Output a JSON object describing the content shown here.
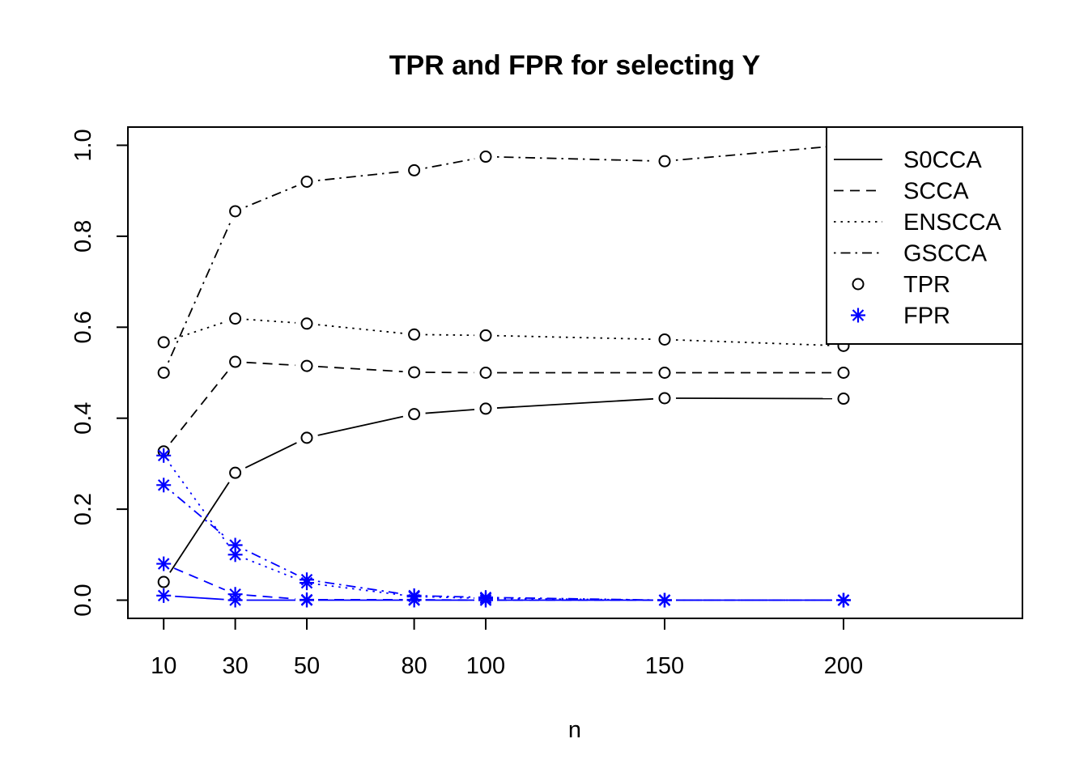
{
  "chart_data": {
    "type": "line",
    "title": "TPR and FPR for selecting Y",
    "xlabel": "n",
    "ylabel": "",
    "x": [
      10,
      30,
      50,
      80,
      100,
      150,
      200
    ],
    "xlim": [
      0,
      250
    ],
    "ylim": [
      -0.04,
      1.04
    ],
    "xticks": [
      10,
      30,
      50,
      80,
      100,
      150,
      200
    ],
    "yticks": [
      0.0,
      0.2,
      0.4,
      0.6,
      0.8,
      1.0
    ],
    "ytick_labels": [
      "0.0",
      "0.2",
      "0.4",
      "0.6",
      "0.8",
      "1.0"
    ],
    "grid": false,
    "legend_position": "top-right",
    "methods": [
      {
        "name": "S0CCA",
        "line_style": "solid"
      },
      {
        "name": "SCCA",
        "line_style": "dashed"
      },
      {
        "name": "ENSCCA",
        "line_style": "dotted"
      },
      {
        "name": "GSCCA",
        "line_style": "dotdash"
      }
    ],
    "metrics": [
      {
        "name": "TPR",
        "marker": "circle",
        "color": "#000000"
      },
      {
        "name": "FPR",
        "marker": "asterisk",
        "color": "#0000ff"
      }
    ],
    "series": [
      {
        "method": "S0CCA",
        "metric": "TPR",
        "values": [
          0.04,
          0.28,
          0.357,
          0.409,
          0.421,
          0.444,
          0.443
        ]
      },
      {
        "method": "SCCA",
        "metric": "TPR",
        "values": [
          0.327,
          0.524,
          0.515,
          0.501,
          0.5,
          0.5,
          0.5
        ]
      },
      {
        "method": "ENSCCA",
        "metric": "TPR",
        "values": [
          0.567,
          0.619,
          0.608,
          0.584,
          0.582,
          0.573,
          0.559
        ]
      },
      {
        "method": "GSCCA",
        "metric": "TPR",
        "values": [
          0.5,
          0.855,
          0.92,
          0.945,
          0.975,
          0.965,
          1.0
        ]
      },
      {
        "method": "S0CCA",
        "metric": "FPR",
        "values": [
          0.01,
          0.0,
          0.0,
          0.0,
          0.0,
          0.0,
          0.0
        ]
      },
      {
        "method": "SCCA",
        "metric": "FPR",
        "values": [
          0.08,
          0.013,
          0.001,
          0.001,
          0.0,
          0.0,
          0.0
        ]
      },
      {
        "method": "ENSCCA",
        "metric": "FPR",
        "values": [
          0.318,
          0.1,
          0.038,
          0.008,
          0.004,
          0.0,
          0.0
        ]
      },
      {
        "method": "GSCCA",
        "metric": "FPR",
        "values": [
          0.253,
          0.121,
          0.045,
          0.01,
          0.006,
          0.0,
          0.0
        ]
      }
    ]
  }
}
